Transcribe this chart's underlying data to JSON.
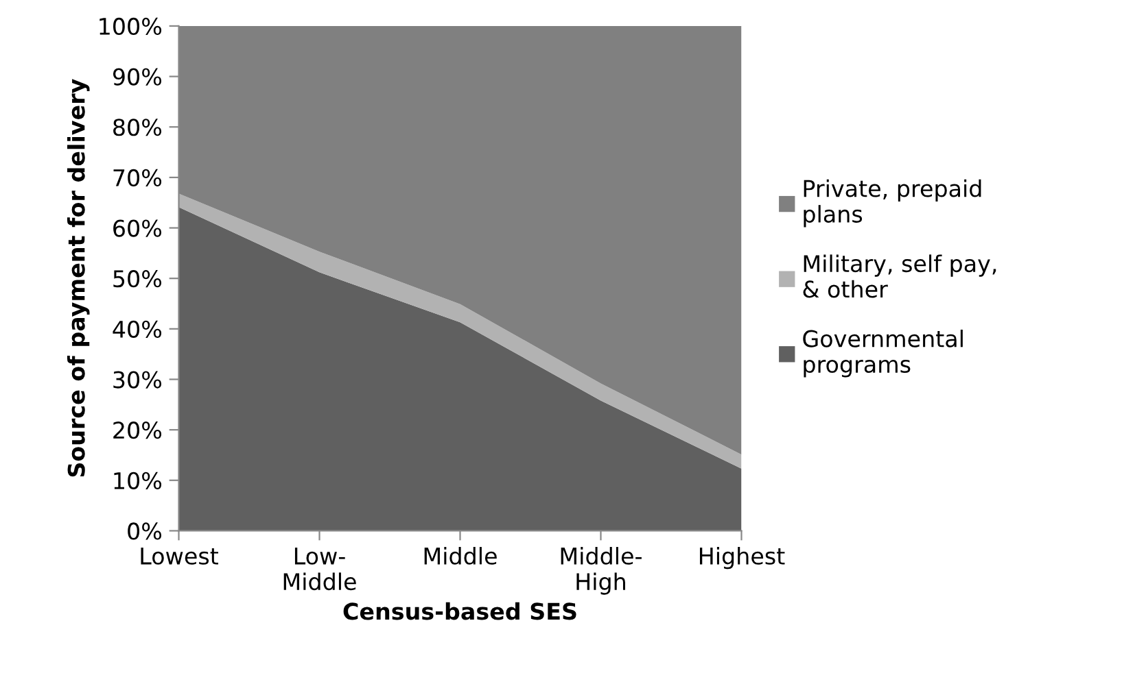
{
  "chart_data": {
    "type": "area",
    "stacked": true,
    "xlabel": "Census-based SES",
    "ylabel": "Source of payment for delivery",
    "categories": [
      "Lowest",
      "Low-\nMiddle",
      "Middle",
      "Middle-\nHigh",
      "Highest"
    ],
    "series": [
      {
        "name": "Governmental\nprograms",
        "color": "#606060",
        "values": [
          64.1,
          51.2,
          41.3,
          25.8,
          12.3
        ]
      },
      {
        "name": "Military, self pay,\n& other",
        "color": "#b2b2b2",
        "values": [
          2.7,
          4.1,
          3.6,
          3.4,
          2.8
        ]
      },
      {
        "name": "Private, prepaid\nplans",
        "color": "#808080",
        "values": [
          33.2,
          44.7,
          55.1,
          70.8,
          84.9
        ]
      }
    ],
    "ylim": [
      0,
      100
    ],
    "yticks": [
      {
        "value": 0,
        "label": "0%"
      },
      {
        "value": 10,
        "label": "10%"
      },
      {
        "value": 20,
        "label": "20%"
      },
      {
        "value": 30,
        "label": "30%"
      },
      {
        "value": 40,
        "label": "40%"
      },
      {
        "value": 50,
        "label": "50%"
      },
      {
        "value": 60,
        "label": "60%"
      },
      {
        "value": 70,
        "label": "70%"
      },
      {
        "value": 80,
        "label": "80%"
      },
      {
        "value": 90,
        "label": "90%"
      },
      {
        "value": 100,
        "label": "100%"
      }
    ],
    "grid": false,
    "legend": "right"
  }
}
